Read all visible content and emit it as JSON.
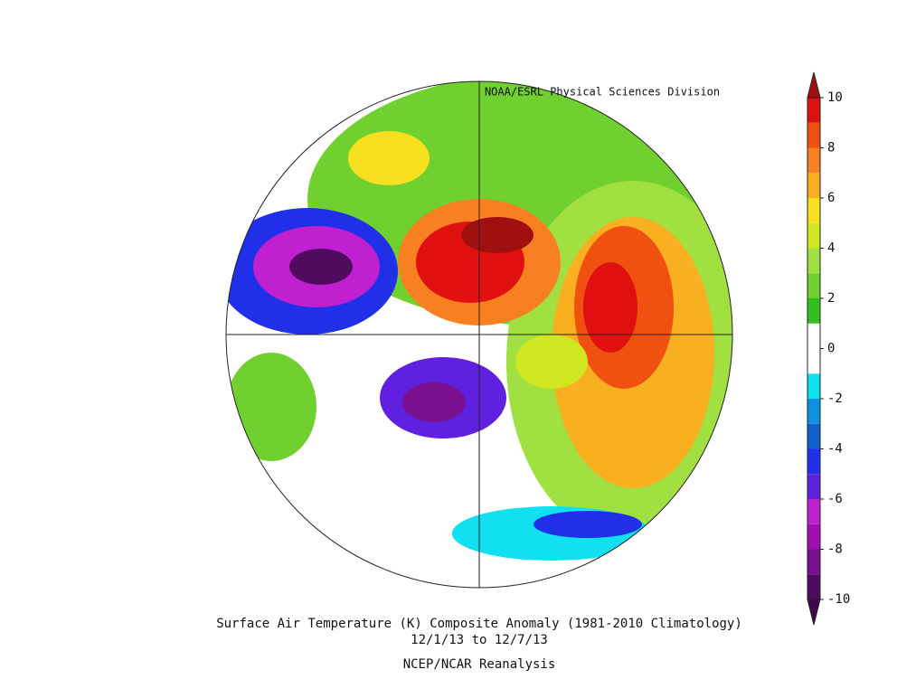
{
  "header": "NOAA/ESRL Physical Sciences Division",
  "title": "Surface Air Temperature (K) Composite Anomaly (1981-2010 Climatology)",
  "period": "12/1/13  to 12/7/13",
  "source": "NCEP/NCAR Reanalysis",
  "colorbar": {
    "lim": [
      -10,
      10
    ],
    "ticks": [
      -10,
      -8,
      -6,
      -4,
      -2,
      0,
      2,
      4,
      6,
      8,
      10
    ],
    "colors": [
      "#500a60",
      "#7a1090",
      "#a010b0",
      "#c020d0",
      "#6020e0",
      "#2030e8",
      "#1060d0",
      "#1090e0",
      "#10e0f0",
      "#ffffff",
      "#ffffff",
      "#30c020",
      "#70d030",
      "#a0e040",
      "#d0e820",
      "#f8e020",
      "#f8b020",
      "#f88020",
      "#f05010",
      "#e01010"
    ],
    "over_color": "#a01010",
    "under_color": "#40084a"
  }
}
